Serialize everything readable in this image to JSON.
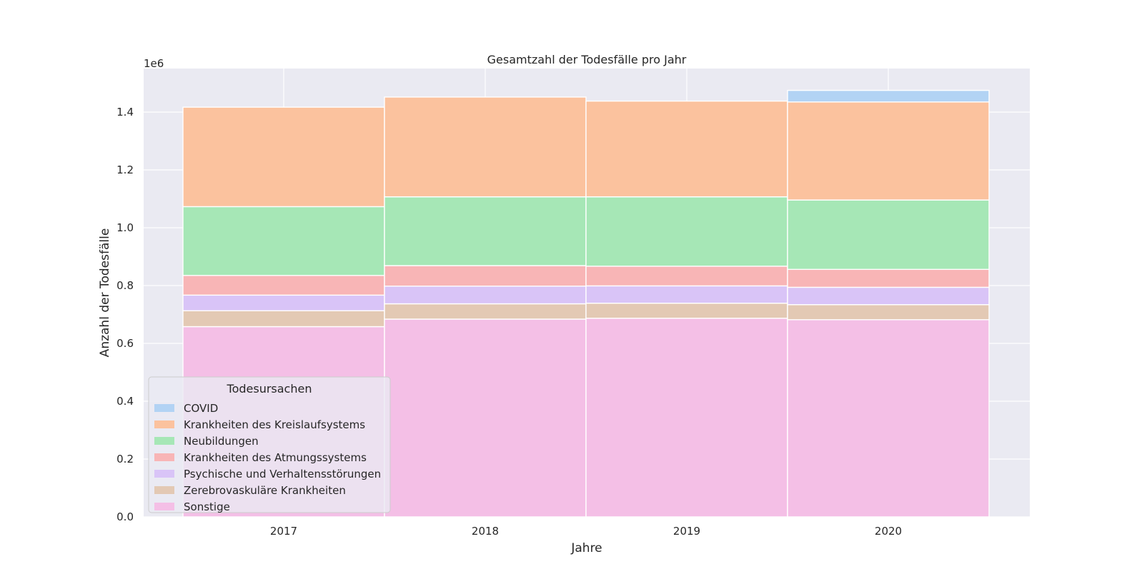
{
  "chart_data": {
    "type": "bar",
    "stacked": true,
    "title": "Gesamtzahl der Todesfälle pro Jahr",
    "xlabel": "Jahre",
    "ylabel": "Anzahl der Todesfälle",
    "y_offset_text": "1e6",
    "ylim": [
      0,
      1.55
    ],
    "yticks": [
      "0.0",
      "0.2",
      "0.4",
      "0.6",
      "0.8",
      "1.0",
      "1.2",
      "1.4"
    ],
    "categories": [
      "2017",
      "2018",
      "2019",
      "2020"
    ],
    "grid": true,
    "legend_title": "Todesursachen",
    "legend_position": "lower-left",
    "series": [
      {
        "name": "Sonstige",
        "color": "#f4bfe6",
        "values": [
          0.658,
          0.684,
          0.687,
          0.682
        ]
      },
      {
        "name": "Zerebrovaskuläre Krankheiten",
        "color": "#e3c9b4",
        "values": [
          0.055,
          0.053,
          0.052,
          0.052
        ]
      },
      {
        "name": "Psychische und Verhaltensstörungen",
        "color": "#d9c4f7",
        "values": [
          0.054,
          0.061,
          0.06,
          0.06
        ]
      },
      {
        "name": "Krankheiten des Atmungssystems",
        "color": "#f8b5b6",
        "values": [
          0.068,
          0.071,
          0.068,
          0.062
        ]
      },
      {
        "name": "Neubildungen",
        "color": "#a6e7b6",
        "values": [
          0.238,
          0.238,
          0.24,
          0.24
        ]
      },
      {
        "name": "Krankheiten des Kreislaufsystems",
        "color": "#fbc29e",
        "values": [
          0.344,
          0.345,
          0.331,
          0.339
        ]
      },
      {
        "name": "COVID",
        "color": "#b2d3f4",
        "values": [
          0,
          0,
          0,
          0.04
        ]
      }
    ]
  }
}
